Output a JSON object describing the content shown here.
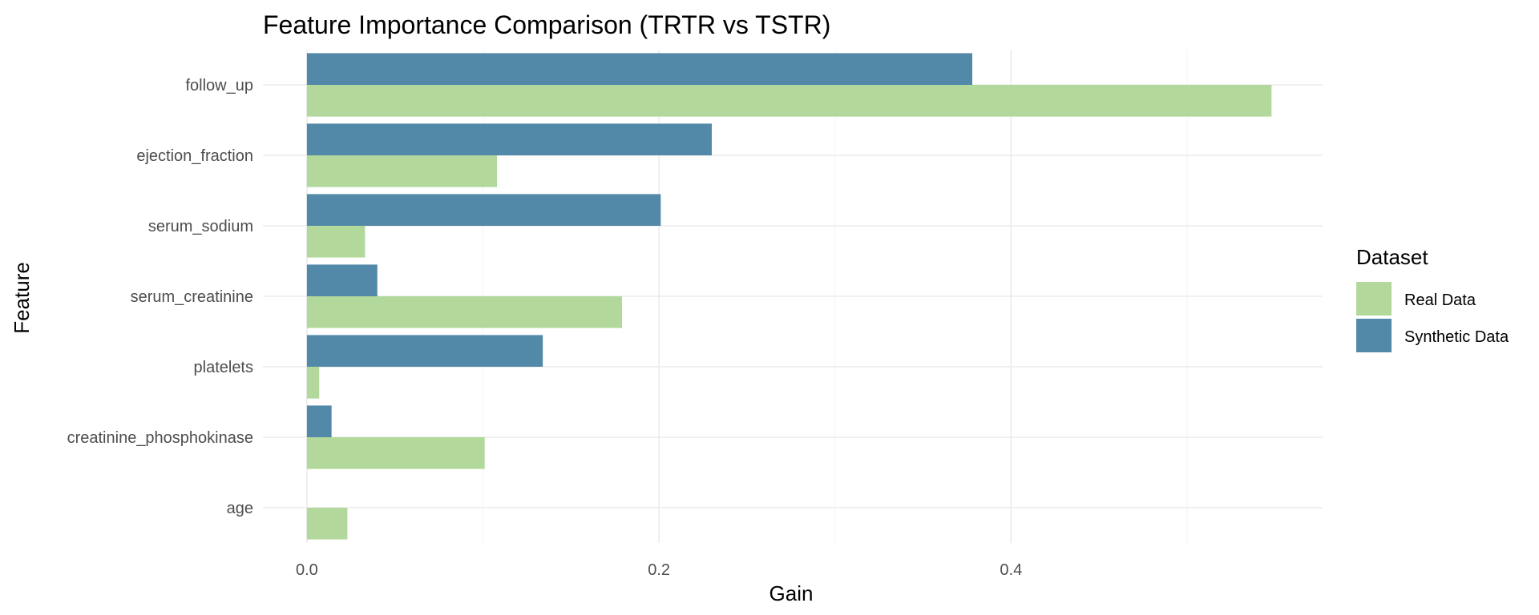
{
  "chart_data": {
    "type": "bar",
    "orientation": "horizontal",
    "title": "Feature Importance Comparison (TRTR vs TSTR)",
    "xlabel": "Gain",
    "ylabel": "Feature",
    "categories": [
      "follow_up",
      "ejection_fraction",
      "serum_sodium",
      "serum_creatinine",
      "platelets",
      "creatinine_phosphokinase",
      "age"
    ],
    "series": [
      {
        "name": "Real Data",
        "color": "#b2d99b",
        "values": [
          0.548,
          0.108,
          0.033,
          0.179,
          0.007,
          0.101,
          0.023
        ]
      },
      {
        "name": "Synthetic Data",
        "color": "#5289a8",
        "values": [
          0.378,
          0.23,
          0.201,
          0.04,
          0.134,
          0.014,
          null
        ]
      }
    ],
    "xlim": [
      -0.025,
      0.577
    ],
    "xticks": [
      0.0,
      0.2,
      0.4
    ],
    "xtick_labels": [
      "0.0",
      "0.2",
      "0.4"
    ],
    "grid": true,
    "legend": {
      "title": "Dataset",
      "position": "right",
      "entries": [
        "Real Data",
        "Synthetic Data"
      ]
    }
  }
}
